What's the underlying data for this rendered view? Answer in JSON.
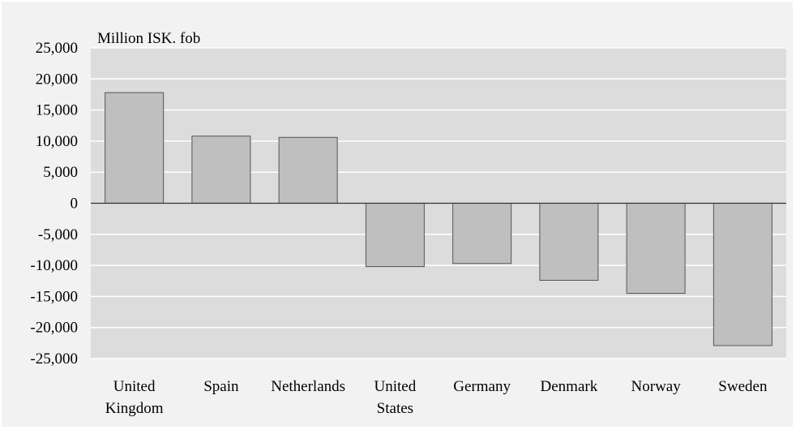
{
  "chart_data": {
    "type": "bar",
    "title": "",
    "unit_label": "Million ISK. fob",
    "xlabel": "",
    "ylabel": "",
    "categories": [
      [
        "United",
        "Kingdom"
      ],
      [
        "Spain"
      ],
      [
        "Netherlands"
      ],
      [
        "United",
        "States"
      ],
      [
        "Germany"
      ],
      [
        "Denmark"
      ],
      [
        "Norway"
      ],
      [
        "Sweden"
      ]
    ],
    "values": [
      17800,
      10800,
      10600,
      -10200,
      -9700,
      -12400,
      -14500,
      -22900
    ],
    "ylim": [
      -25000,
      25000
    ],
    "yticks": [
      25000,
      20000,
      15000,
      10000,
      5000,
      0,
      -5000,
      -10000,
      -15000,
      -20000,
      -25000
    ],
    "ytick_labels": [
      "25,000",
      "20,000",
      "15,000",
      "10,000",
      "5,000",
      "0",
      "-5,000",
      "-10,000",
      "-15,000",
      "-20,000",
      "-25,000"
    ],
    "grid": true,
    "legend": "none",
    "colors": {
      "plot_background": "#dcdcdc",
      "outer_background": "#f2f2f2",
      "bar_fill": "#bfbfbf",
      "bar_stroke": "#555555",
      "gridline": "#ffffff",
      "zero_line": "#333333"
    }
  }
}
